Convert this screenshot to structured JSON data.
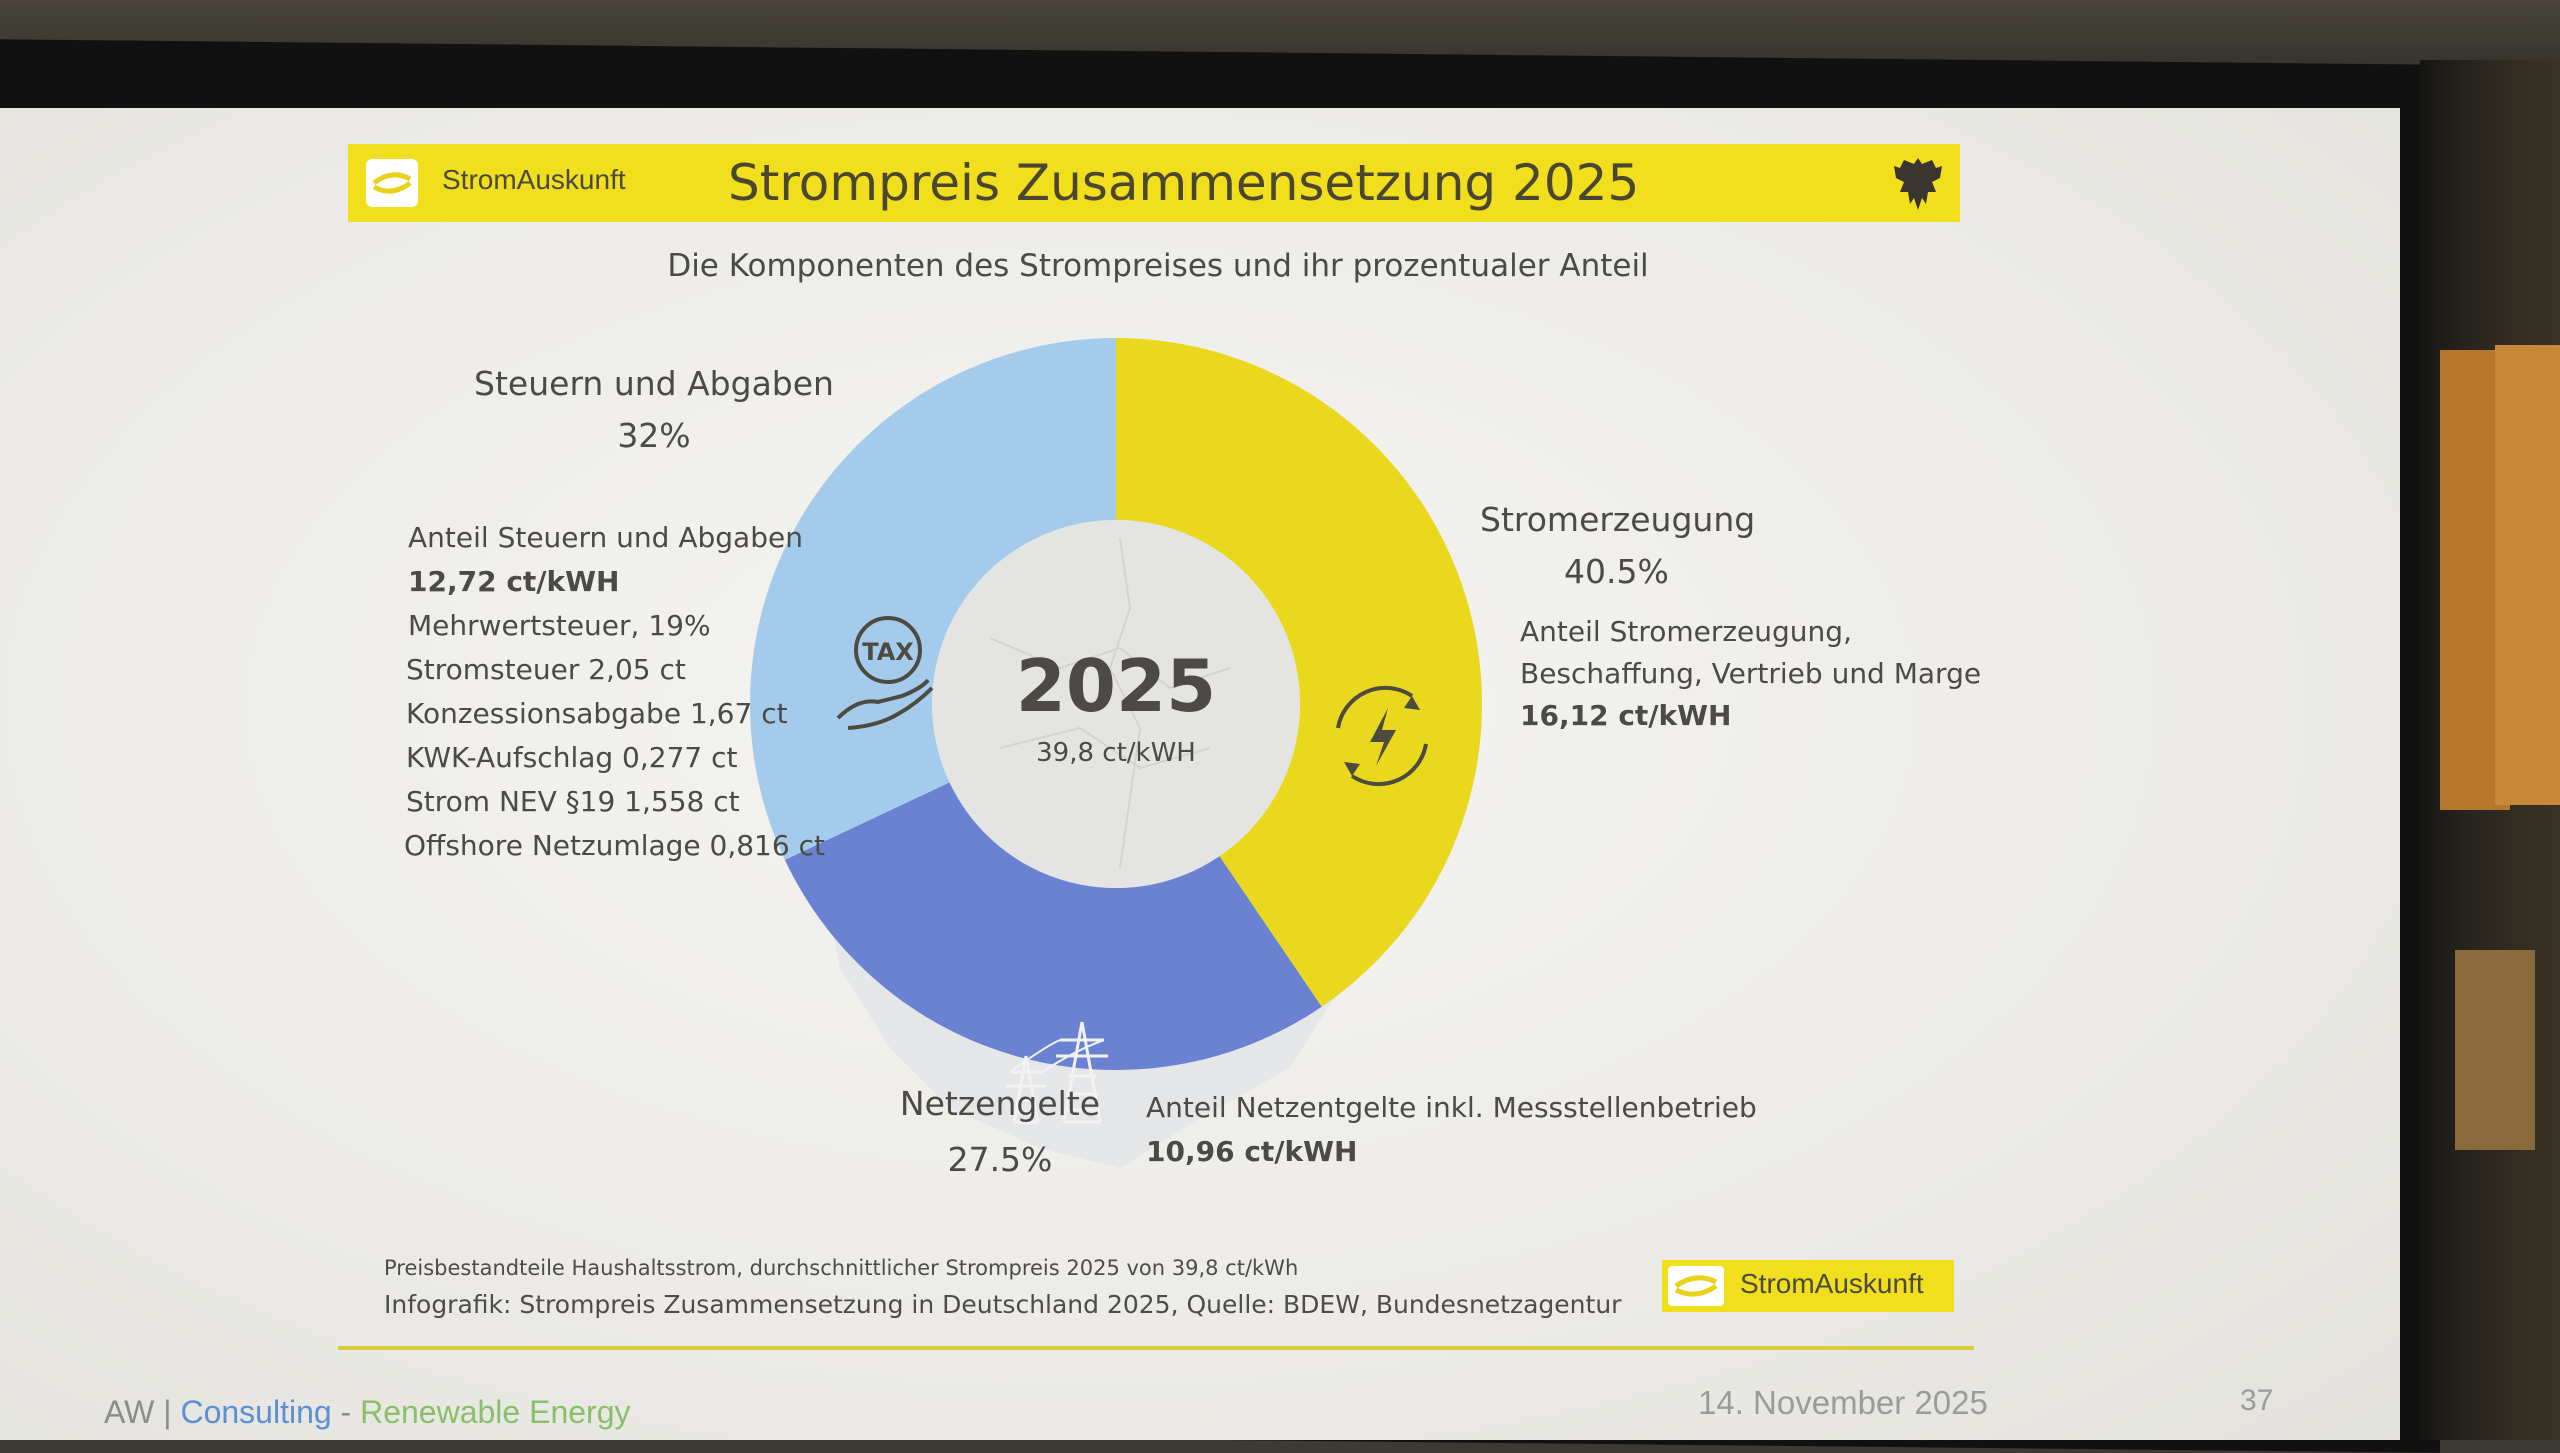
{
  "header": {
    "brand": "StromAuskunft",
    "title": "Strompreis Zusammensetzung 2025"
  },
  "subtitle": "Die Komponenten des Strompreises und ihr prozentualer Anteil",
  "chart_data": {
    "type": "pie",
    "center_label": "2025",
    "center_value": "39,8 ct/kWH",
    "slices": [
      {
        "name": "Stromerzeugung",
        "percent_label": "40.5%",
        "value": 40.5,
        "color": "#e9d81d",
        "icon": "lightning-icon",
        "details": [
          "Anteil Stromerzeugung,",
          "Beschaffung, Vertrieb und Marge"
        ],
        "amount": "16,12 ct/kWH"
      },
      {
        "name": "Netzengelte",
        "percent_label": "27.5%",
        "value": 27.5,
        "color": "#6b82d2",
        "icon": "power-pylon-icon",
        "details": [
          "Anteil Netzentgelte inkl. Messstellenbetrieb"
        ],
        "amount": "10,96 ct/kWH"
      },
      {
        "name": "Steuern und Abgaben",
        "percent_label": "32%",
        "value": 32,
        "color": "#a5cbec",
        "icon": "tax-hand-icon",
        "details": [
          "Anteil Steuern und Abgaben"
        ],
        "amount": "12,72 ct/kWH",
        "items": [
          "Mehrwertsteuer, 19%",
          "Stromsteuer 2,05 ct",
          "Konzessionsabgabe 1,67 ct",
          "KWK-Aufschlag 0,277 ct",
          "Strom NEV §19 1,558 ct",
          "Offshore Netzumlage 0,816 ct"
        ]
      }
    ],
    "icon_texts": {
      "tax": "TAX"
    }
  },
  "footer": {
    "note": "Preisbestandteile Haushaltsstrom, durchschnittlicher Strompreis 2025 von 39,8 ct/kWh",
    "source": "Infografik: Strompreis Zusammensetzung in Deutschland 2025, Quelle: BDEW, Bundesnetzagentur",
    "logo_text": "StromAuskunft",
    "company_a": "AW | ",
    "company_b": "Consulting",
    "company_sep": " - ",
    "company_c": "Renewable Energy",
    "date": "14. November 2025",
    "page": "37"
  },
  "colors": {
    "banner": "#f1de1c",
    "rule": "#d8cc3a"
  }
}
